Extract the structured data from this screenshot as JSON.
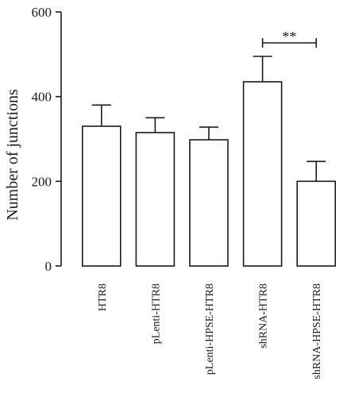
{
  "chart_data": {
    "type": "bar",
    "categories": [
      "HTR8",
      "pLenti-HTR8",
      "pLenti-HPSE-HTR8",
      "shRNA-HTR8",
      "shRNA-HPSE-HTR8"
    ],
    "values": [
      330,
      315,
      298,
      435,
      200
    ],
    "errors": [
      50,
      35,
      30,
      60,
      47
    ],
    "ylabel": "Number of junctions",
    "xlabel": "",
    "title": "",
    "ylim": [
      0,
      600
    ],
    "yticks": [
      0,
      200,
      400,
      600
    ],
    "grid": false,
    "bar_fill": "#ffffff",
    "stroke_color": "#1a1a1a",
    "significance": {
      "from": 3,
      "to": 4,
      "label": "**"
    }
  }
}
